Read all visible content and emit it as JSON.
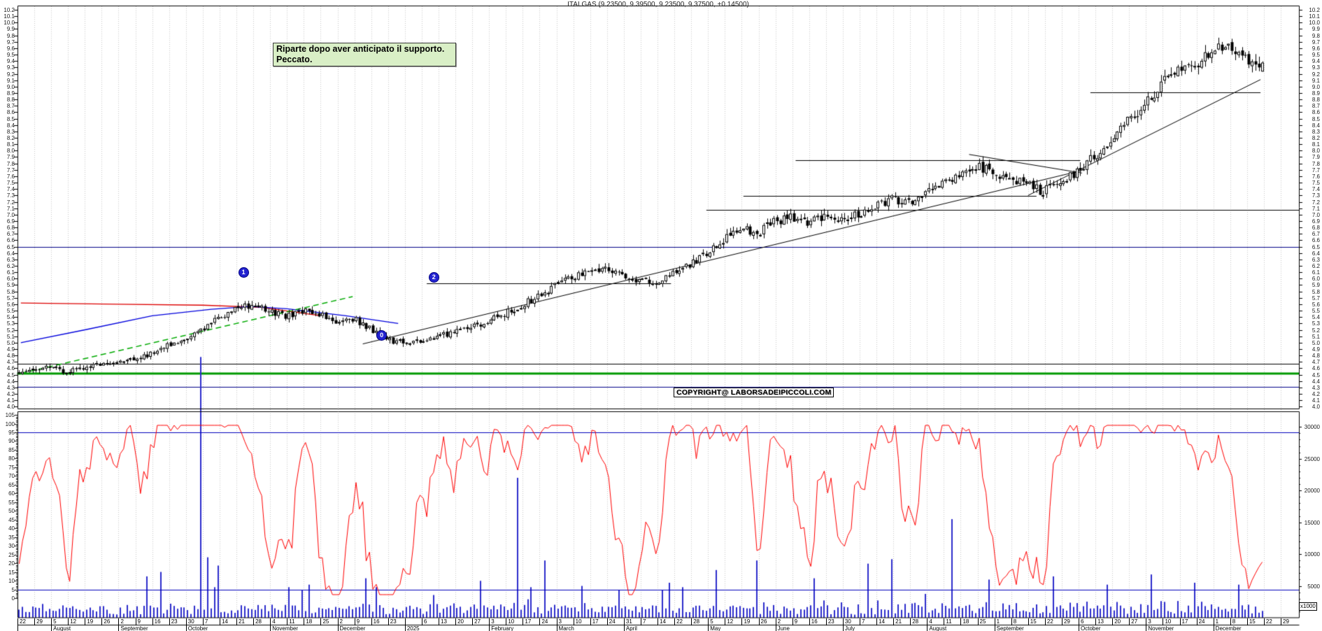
{
  "title": "ITALGAS (9.23500, 9.39500, 9.23500, 9.37500, +0.14500)",
  "annotation": {
    "line1": "Riparte dopo aver anticipato il supporto.",
    "line2": "Peccato."
  },
  "copyright": {
    "text": "COPYRIGHT@ LABORSADEIPICCOLI.COM"
  },
  "volume_note": "x1000",
  "colors": {
    "up_body": "#ffffff",
    "down_body": "#000000",
    "candle_line": "#000000",
    "volume": "#2b2bcc",
    "oscillator": "#ff0000",
    "band": "#0000bb",
    "grid": "#c6c6c6",
    "navy": "#000088",
    "support_green": "#009900",
    "ma_red": "#dd0000",
    "ma_blue": "#0000dd",
    "trend_green": "#00aa00",
    "black_line": "#000000"
  },
  "chart_data": {
    "type": "candlestick",
    "instrument": "ITALGAS",
    "last_quote": {
      "open": 9.235,
      "high": 9.395,
      "low": 9.235,
      "close": 9.375,
      "change": "+0.14500"
    },
    "price_axis": {
      "min": 4.0,
      "max": 10.2,
      "step": 0.1,
      "sides": "both"
    },
    "oscillator": {
      "type": "stochastic",
      "axis": {
        "min": 0,
        "max": 105,
        "step": 5
      },
      "bands": [
        95,
        5
      ]
    },
    "volume_axis": {
      "min": 5000,
      "max": 30000,
      "step": 5000,
      "unit": "x1000"
    },
    "week_labels": [
      "22",
      "29",
      "5",
      "12",
      "19",
      "26",
      "2",
      "9",
      "16",
      "23",
      "30",
      "7",
      "14",
      "21",
      "28",
      "4",
      "11",
      "18",
      "25",
      "2",
      "9",
      "16",
      "23",
      "",
      "6",
      "13",
      "20",
      "27",
      "3",
      "10",
      "17",
      "24",
      "3",
      "10",
      "17",
      "24",
      "31",
      "7",
      "14",
      "22",
      "28",
      "5",
      "12",
      "19",
      "26",
      "2",
      "9",
      "16",
      "23",
      "30",
      "7",
      "14",
      "21",
      "28",
      "4",
      "11",
      "18",
      "25",
      "1",
      "8",
      "15",
      "22",
      "29",
      "6",
      "13",
      "20",
      "27",
      "3",
      "10",
      "17",
      "24",
      "1",
      "8",
      "15",
      "22",
      "29"
    ],
    "months": [
      {
        "label": "",
        "span": 2
      },
      {
        "label": "August",
        "span": 4
      },
      {
        "label": "September",
        "span": 4
      },
      {
        "label": "October",
        "span": 5
      },
      {
        "label": "November",
        "span": 4
      },
      {
        "label": "December",
        "span": 4
      },
      {
        "label": "2025",
        "span": 5
      },
      {
        "label": "February",
        "span": 4
      },
      {
        "label": "March",
        "span": 4
      },
      {
        "label": "April",
        "span": 5
      },
      {
        "label": "May",
        "span": 4
      },
      {
        "label": "June",
        "span": 4
      },
      {
        "label": "July",
        "span": 5
      },
      {
        "label": "August",
        "span": 4
      },
      {
        "label": "September",
        "span": 5
      },
      {
        "label": "October",
        "span": 4
      },
      {
        "label": "November",
        "span": 4
      },
      {
        "label": "December",
        "span": 5
      }
    ],
    "weekly_closes": [
      4.6,
      4.62,
      4.55,
      4.62,
      4.66,
      4.7,
      4.72,
      4.82,
      4.95,
      5.08,
      5.18,
      5.38,
      5.55,
      5.58,
      5.5,
      5.42,
      5.5,
      5.45,
      5.32,
      5.38,
      5.22,
      5.05,
      5.0,
      5.02,
      5.1,
      5.16,
      5.24,
      5.32,
      5.45,
      5.58,
      5.72,
      5.88,
      6.02,
      6.12,
      6.18,
      6.05,
      5.98,
      5.88,
      6.08,
      6.22,
      6.4,
      6.6,
      6.78,
      6.72,
      6.88,
      6.95,
      6.85,
      7.0,
      6.92,
      7.02,
      7.12,
      7.24,
      7.18,
      7.32,
      7.48,
      7.62,
      7.78,
      7.65,
      7.55,
      7.48,
      7.35,
      7.52,
      7.68,
      7.92,
      8.12,
      8.45,
      8.72,
      9.05,
      9.25,
      9.32,
      9.58,
      9.7,
      9.42,
      9.375
    ],
    "volume_spikes": [
      [
        7,
        3,
        6500
      ],
      [
        8,
        2,
        7200
      ],
      [
        10,
        4,
        41000
      ],
      [
        11,
        1,
        9500
      ],
      [
        11,
        4,
        8200
      ],
      [
        17,
        1,
        5200
      ],
      [
        20,
        3,
        6200
      ],
      [
        27,
        2,
        5800
      ],
      [
        29,
        3,
        22000
      ],
      [
        31,
        1,
        9000
      ],
      [
        33,
        2,
        5000
      ],
      [
        38,
        3,
        5500
      ],
      [
        41,
        2,
        7500
      ],
      [
        43,
        4,
        9000
      ],
      [
        47,
        1,
        6200
      ],
      [
        50,
        2,
        8500
      ],
      [
        51,
        4,
        9200
      ],
      [
        55,
        2,
        15500
      ],
      [
        57,
        3,
        6000
      ],
      [
        61,
        2,
        6500
      ],
      [
        64,
        3,
        5200
      ],
      [
        67,
        1,
        6800
      ],
      [
        69,
        4,
        5500
      ],
      [
        72,
        2,
        5200
      ]
    ],
    "levels": [
      {
        "price": 6.5,
        "from_week": -0.02,
        "to_week": 76.1,
        "color": "navy",
        "width": 1
      },
      {
        "price": 4.67,
        "from_week": -0.02,
        "to_week": 76.1,
        "color": "black_line",
        "width": 1
      },
      {
        "price": 4.52,
        "from_week": -0.02,
        "to_week": 76.1,
        "color": "support_green",
        "width": 3
      },
      {
        "price": 4.31,
        "from_week": -0.02,
        "to_week": 76.1,
        "color": "navy",
        "width": 1
      },
      {
        "price": 5.93,
        "from_week": 24.3,
        "to_week": 38.8,
        "color": "black_line",
        "width": 1
      },
      {
        "price": 7.07,
        "from_week": 40.9,
        "to_week": 76.1,
        "color": "black_line",
        "width": 1
      },
      {
        "price": 7.29,
        "from_week": 43.1,
        "to_week": 60.5,
        "color": "black_line",
        "width": 1
      },
      {
        "price": 7.85,
        "from_week": 46.2,
        "to_week": 63.1,
        "color": "black_line",
        "width": 1
      },
      {
        "price": 8.91,
        "from_week": 63.7,
        "to_week": 73.8,
        "color": "black_line",
        "width": 1
      }
    ],
    "osc_bands": [
      {
        "value": 95,
        "color": "band"
      },
      {
        "value": 5,
        "color": "band"
      }
    ],
    "trendlines": [
      {
        "points": [
          [
            20.5,
            4.98
          ],
          [
            63.2,
            7.69
          ]
        ],
        "color": "black_line",
        "width": 1,
        "dash": null
      },
      {
        "points": [
          [
            56.5,
            7.94
          ],
          [
            63.2,
            7.65
          ]
        ],
        "color": "black_line",
        "width": 1,
        "dash": null
      },
      {
        "points": [
          [
            60.0,
            7.3
          ],
          [
            73.8,
            9.11
          ]
        ],
        "color": "black_line",
        "width": 1,
        "dash": null
      },
      {
        "points": [
          [
            0.2,
            5.62
          ],
          [
            6,
            5.6
          ],
          [
            11,
            5.585
          ],
          [
            14.5,
            5.55
          ],
          [
            18,
            5.42
          ]
        ],
        "color": "ma_red",
        "width": 1.3,
        "dash": null
      },
      {
        "points": [
          [
            0.2,
            5.0
          ],
          [
            4,
            5.2
          ],
          [
            8,
            5.42
          ],
          [
            11.5,
            5.52
          ],
          [
            13.8,
            5.565
          ],
          [
            16,
            5.53
          ],
          [
            19.5,
            5.42
          ],
          [
            22.6,
            5.3
          ]
        ],
        "color": "ma_blue",
        "width": 1.3,
        "dash": null
      },
      {
        "points": [
          [
            0.2,
            4.52
          ],
          [
            19.9,
            5.72
          ]
        ],
        "color": "trend_green",
        "width": 1.5,
        "dash": [
          8,
          5
        ]
      }
    ],
    "markers": [
      {
        "label": "0",
        "week": 21.6,
        "price": 5.12
      },
      {
        "label": "1",
        "week": 13.4,
        "price": 6.1
      },
      {
        "label": "2",
        "week": 24.7,
        "price": 6.02
      }
    ]
  }
}
